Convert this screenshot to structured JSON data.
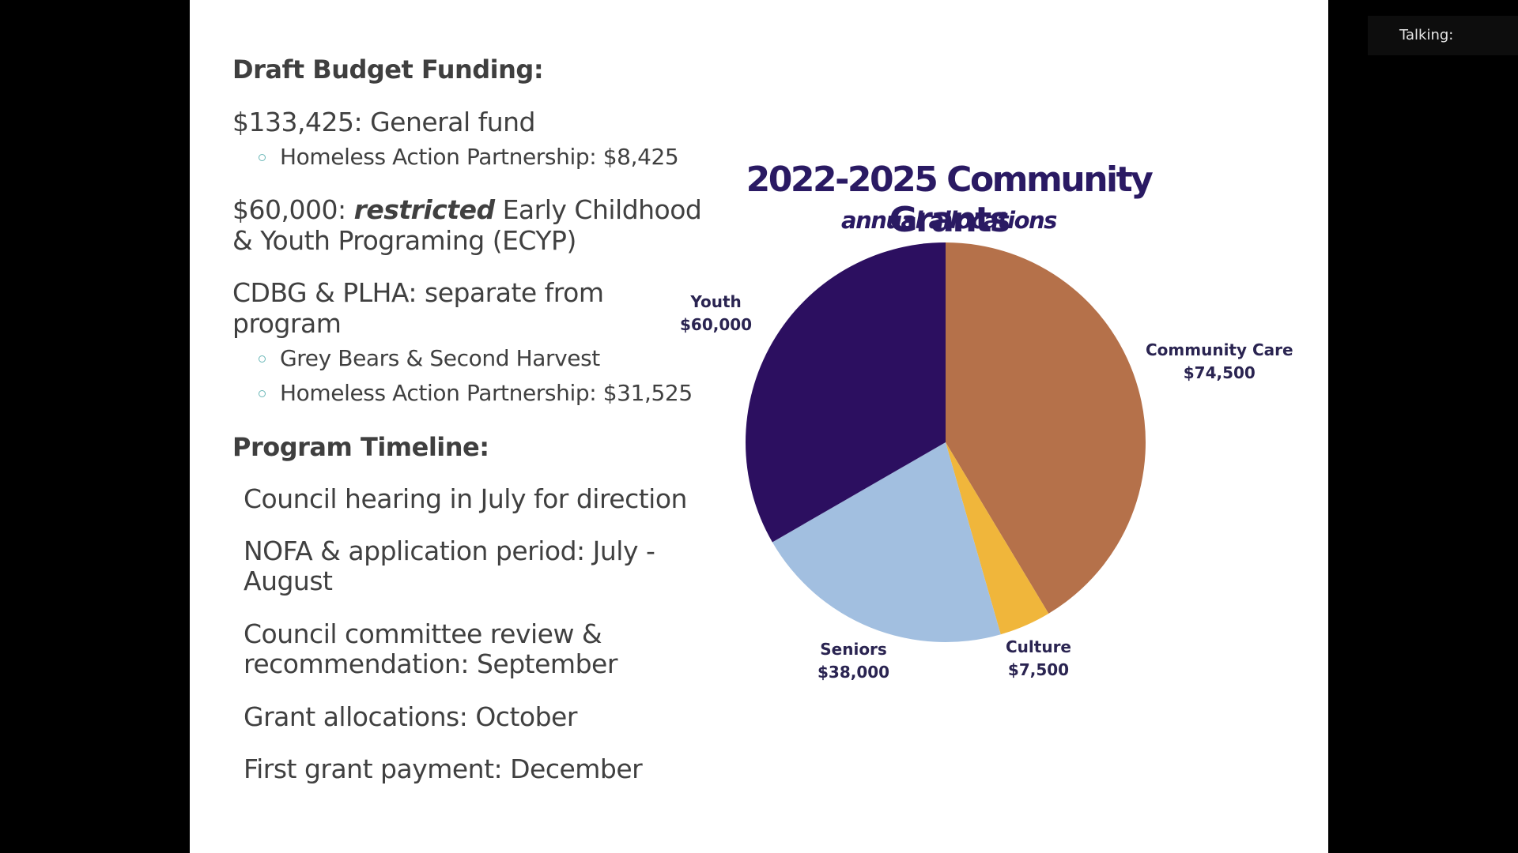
{
  "overlay": {
    "talking_label": "Talking:"
  },
  "slide": {
    "budget": {
      "heading": "Draft Budget Funding:",
      "general_fund": "$133,425:  General fund",
      "general_fund_sub": "Homeless Action Partnership: $8,425",
      "restricted_amount": "$60,000: ",
      "restricted_word": "restricted",
      "restricted_rest_line1": " Early Childhood",
      "restricted_line2": "& Youth Programing (ECYP)",
      "cdbg_line1": "CDBG & PLHA: separate from",
      "cdbg_line2": "program",
      "cdbg_sub1": "Grey Bears & Second Harvest",
      "cdbg_sub2": "Homeless Action Partnership: $31,525"
    },
    "timeline": {
      "heading": "Program Timeline:",
      "items": [
        "Council hearing in July for direction",
        "NOFA & application period: July -",
        "August",
        "Council committee review &",
        "recommendation: September",
        "Grant allocations: October",
        "First grant payment: December"
      ]
    }
  },
  "chart_data": {
    "type": "pie",
    "title": "2022-2025 Community Grants",
    "subtitle": "annual allocations",
    "categories": [
      "Community Care",
      "Culture",
      "Seniors",
      "Youth"
    ],
    "values": [
      74500,
      7500,
      38000,
      60000
    ],
    "value_labels": [
      "$74,500",
      "$7,500",
      "$38,000",
      "$60,000"
    ],
    "colors": [
      "#b5714a",
      "#f0b63b",
      "#a2bfe0",
      "#2c0f60"
    ],
    "start_angle": "12 o'clock, clockwise",
    "legend": "none (direct labels)"
  }
}
